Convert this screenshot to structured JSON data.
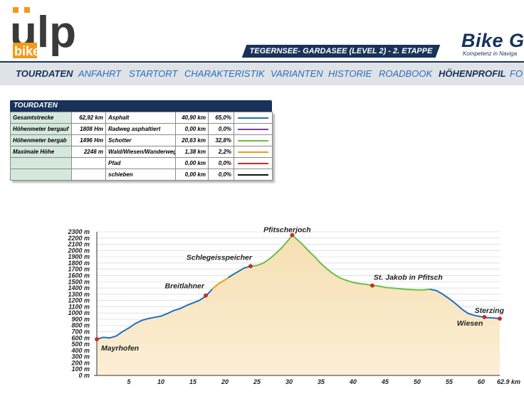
{
  "logo": {
    "text": "ulp",
    "sub": "bike"
  },
  "header": {
    "stage": "TEGERNSEE- GARDASEE (LEVEL 2) - 2. ETAPPE",
    "brand": "Bike G",
    "brand_sub": "Kompetenz in Naviga"
  },
  "nav": [
    "TOURDATEN",
    "ANFAHRT",
    "STARTORT",
    "CHARAKTERISTIK",
    "VARIANTEN",
    "HISTORIE",
    "ROADBOOK",
    "HÖHENPROFIL",
    "FO"
  ],
  "tourdaten": {
    "title": "TOURDATEN",
    "rows": [
      {
        "label": "Gesamtstrecke",
        "value": "62,92 km",
        "surface": "Asphalt",
        "km": "40,90 km",
        "pct": "65,0%",
        "color": "#1f6fc1"
      },
      {
        "label": "Höhenmeter bergauf",
        "value": "1808 Hm",
        "surface": "Radweg asphaltiert",
        "km": "0,00 km",
        "pct": "0,0%",
        "color": "#7b3f9a"
      },
      {
        "label": "Höhenmeter bergab",
        "value": "1496 Hm",
        "surface": "Schotter",
        "km": "20,63 km",
        "pct": "32,8%",
        "color": "#6abf45"
      },
      {
        "label": "Maximale Höhe",
        "value": "2248 m",
        "surface": "Wald/Wiesen/Wanderweg",
        "km": "1,38 km",
        "pct": "2,2%",
        "color": "#f29a1a"
      },
      {
        "label": "",
        "value": "",
        "surface": "Pfad",
        "km": "0,00 km",
        "pct": "0,0%",
        "color": "#d8262a"
      },
      {
        "label": "",
        "value": "",
        "surface": "schieben",
        "km": "0,00 km",
        "pct": "0,0%",
        "color": "#111111"
      }
    ]
  },
  "chart_data": {
    "type": "area",
    "xlim": [
      0,
      62.9
    ],
    "ylim": [
      0,
      2300
    ],
    "y_ticks": [
      0,
      100,
      200,
      300,
      400,
      500,
      600,
      700,
      800,
      900,
      1000,
      1100,
      1200,
      1300,
      1400,
      1500,
      1600,
      1700,
      1800,
      1900,
      2000,
      2100,
      2200,
      2300
    ],
    "y_tick_labels": [
      "0 m",
      "100 m",
      "200 m",
      "300 m",
      "400 m",
      "500 m",
      "600 m",
      "700 m",
      "800 m",
      "900 m",
      "1000 m",
      "1100 m",
      "1200 m",
      "1300 m",
      "1400 m",
      "1500 m",
      "1600 m",
      "1700 m",
      "1800 m",
      "1900 m",
      "2000 m",
      "2100 m",
      "2200 m",
      "2300 m"
    ],
    "x_ticks": [
      5,
      10,
      15,
      20,
      25,
      30,
      35,
      40,
      45,
      50,
      55,
      60,
      62.9
    ],
    "x_tick_labels": [
      "5",
      "10",
      "15",
      "20",
      "25",
      "30",
      "35",
      "40",
      "45",
      "50",
      "55",
      "60",
      "62.9 km"
    ],
    "profile": [
      [
        0,
        580
      ],
      [
        1,
        610
      ],
      [
        2,
        600
      ],
      [
        3,
        630
      ],
      [
        4,
        700
      ],
      [
        5,
        760
      ],
      [
        6,
        830
      ],
      [
        7,
        880
      ],
      [
        8,
        910
      ],
      [
        9,
        930
      ],
      [
        10,
        950
      ],
      [
        11,
        990
      ],
      [
        12,
        1040
      ],
      [
        13,
        1070
      ],
      [
        14,
        1120
      ],
      [
        15,
        1160
      ],
      [
        16,
        1200
      ],
      [
        17,
        1270
      ],
      [
        18,
        1380
      ],
      [
        19,
        1470
      ],
      [
        20,
        1530
      ],
      [
        21,
        1600
      ],
      [
        22,
        1660
      ],
      [
        23,
        1720
      ],
      [
        24,
        1750
      ],
      [
        25,
        1760
      ],
      [
        26,
        1800
      ],
      [
        27,
        1870
      ],
      [
        28,
        1960
      ],
      [
        29,
        2060
      ],
      [
        30,
        2180
      ],
      [
        30.5,
        2248
      ],
      [
        31,
        2200
      ],
      [
        32,
        2110
      ],
      [
        33,
        2000
      ],
      [
        34,
        1900
      ],
      [
        35,
        1790
      ],
      [
        36,
        1700
      ],
      [
        37,
        1620
      ],
      [
        38,
        1560
      ],
      [
        39,
        1520
      ],
      [
        40,
        1490
      ],
      [
        41,
        1470
      ],
      [
        42,
        1460
      ],
      [
        43,
        1440
      ],
      [
        44,
        1430
      ],
      [
        45,
        1410
      ],
      [
        46,
        1400
      ],
      [
        47,
        1390
      ],
      [
        48,
        1380
      ],
      [
        49,
        1375
      ],
      [
        50,
        1370
      ],
      [
        51,
        1370
      ],
      [
        52,
        1380
      ],
      [
        53,
        1360
      ],
      [
        54,
        1300
      ],
      [
        55,
        1230
      ],
      [
        56,
        1150
      ],
      [
        57,
        1060
      ],
      [
        58,
        990
      ],
      [
        59,
        960
      ],
      [
        60,
        940
      ],
      [
        61,
        925
      ],
      [
        62,
        920
      ],
      [
        62.9,
        910
      ]
    ],
    "segments": [
      {
        "from": 0,
        "to": 18,
        "color": "#1f6fc1"
      },
      {
        "from": 18,
        "to": 20.5,
        "color": "#f29a1a"
      },
      {
        "from": 20.5,
        "to": 24,
        "color": "#1f6fc1"
      },
      {
        "from": 24,
        "to": 52,
        "color": "#6abf45"
      },
      {
        "from": 52,
        "to": 62.9,
        "color": "#1f6fc1"
      }
    ],
    "places": [
      {
        "name": "Mayrhofen",
        "x": 0,
        "y": 580,
        "dx": 6,
        "dy": 16,
        "anchor": "start"
      },
      {
        "name": "Breitlahner",
        "x": 17,
        "y": 1280,
        "dx": -2,
        "dy": -10,
        "anchor": "end"
      },
      {
        "name": "Schlegeisspeicher",
        "x": 24,
        "y": 1750,
        "dx": 2,
        "dy": -9,
        "anchor": "end"
      },
      {
        "name": "Pfitscherjoch",
        "x": 30.5,
        "y": 2248,
        "dx": -7,
        "dy": -4,
        "anchor": "middle"
      },
      {
        "name": "St. Jakob in Pfitsch",
        "x": 43,
        "y": 1440,
        "dx": 2,
        "dy": -8,
        "anchor": "start"
      },
      {
        "name": "Wiesen",
        "x": 60.5,
        "y": 935,
        "dx": -2,
        "dy": 12,
        "anchor": "end"
      },
      {
        "name": "Sterzing",
        "x": 62.9,
        "y": 910,
        "dx": 6,
        "dy": -8,
        "anchor": "end"
      }
    ]
  }
}
